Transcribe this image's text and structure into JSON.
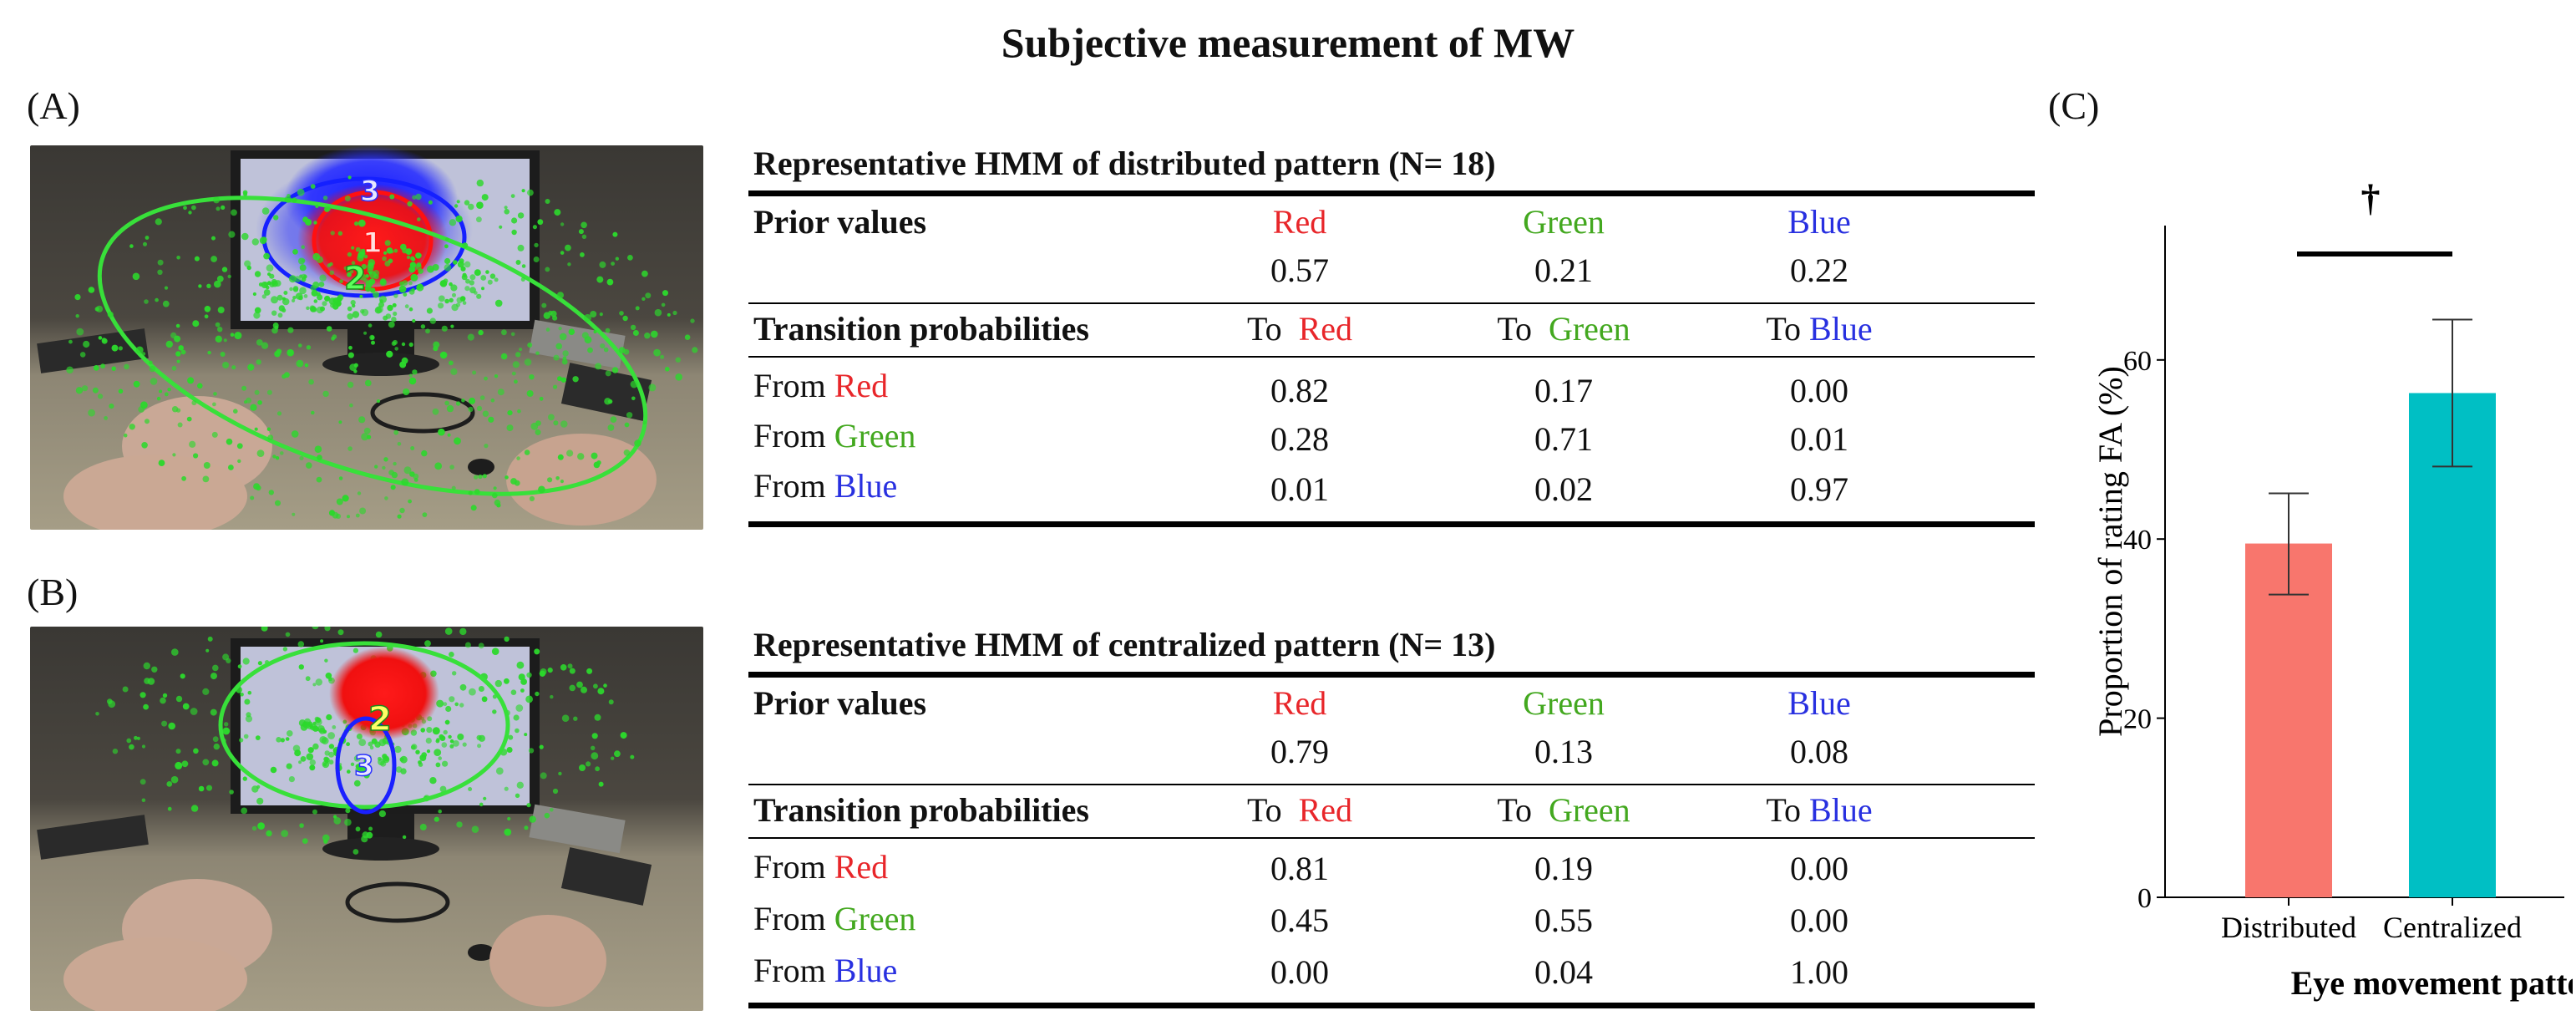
{
  "title": "Subjective measurement of MW",
  "panel_labels": {
    "a": "(A)",
    "b": "(B)",
    "c": "(C)"
  },
  "colors": {
    "red": "#e8262a",
    "green": "#43a81f",
    "blue": "#2830e0",
    "bar_distributed": "#f8766d",
    "bar_centralized": "#00bfc4"
  },
  "photo_a_labels": [
    "3",
    "1",
    "2"
  ],
  "photo_b_labels": [
    "2",
    "3"
  ],
  "table_common": {
    "prior_label": "Prior values",
    "transition_label": "Transition probabilities",
    "states": [
      "Red",
      "Green",
      "Blue"
    ],
    "to_word": "To",
    "from_word": "From"
  },
  "table_a": {
    "title": "Representative HMM of distributed pattern (N= 18)",
    "priors": [
      "0.57",
      "0.21",
      "0.22"
    ],
    "transitions": [
      [
        "0.82",
        "0.17",
        "0.00"
      ],
      [
        "0.28",
        "0.71",
        "0.01"
      ],
      [
        "0.01",
        "0.02",
        "0.97"
      ]
    ]
  },
  "table_b": {
    "title": "Representative HMM of centralized pattern (N= 13)",
    "priors": [
      "0.79",
      "0.13",
      "0.08"
    ],
    "transitions": [
      [
        "0.81",
        "0.19",
        "0.00"
      ],
      [
        "0.45",
        "0.55",
        "0.00"
      ],
      [
        "0.00",
        "0.04",
        "1.00"
      ]
    ]
  },
  "chart_data": {
    "type": "bar",
    "categories": [
      "Distributed",
      "Centralized"
    ],
    "values": [
      39.5,
      56.3
    ],
    "error_low": [
      33.8,
      48.1
    ],
    "error_high": [
      45.1,
      64.5
    ],
    "ylabel": "Proportion of rating FA (%)",
    "xlabel": "Eye movement pattern",
    "ylim": [
      0,
      75
    ],
    "yticks": [
      0,
      20,
      40,
      60
    ],
    "significance": "†",
    "grid": false
  }
}
